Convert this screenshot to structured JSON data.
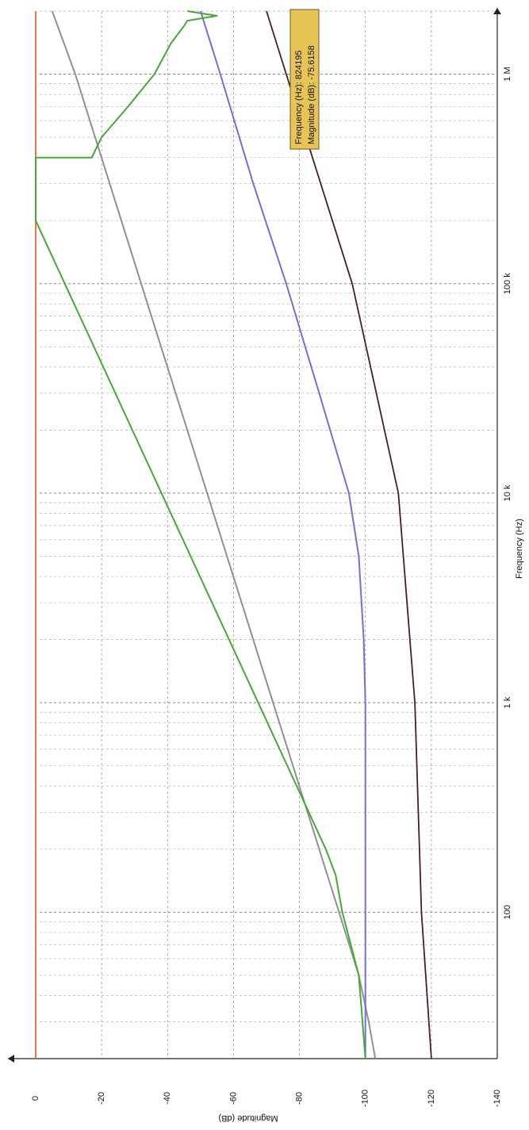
{
  "chart_data": {
    "type": "line",
    "xlabel": "Frequency (Hz)",
    "ylabel": "Magnitude (dB)",
    "xscale": "log",
    "xlim": [
      20,
      2000000
    ],
    "ylim": [
      -140,
      5
    ],
    "y_ticks": [
      0,
      -20,
      -40,
      -60,
      -80,
      -100,
      -120,
      -140
    ],
    "y_tick_labels": [
      "0",
      "-20",
      "-40",
      "-60",
      "-80",
      "-100",
      "-120",
      "-140"
    ],
    "x_ticks": [
      100,
      1000,
      10000,
      100000,
      1000000
    ],
    "x_tick_labels": [
      "100",
      "1 k",
      "10 k",
      "100 k",
      "1 M"
    ],
    "grid": true,
    "orientation": "rotated 90° clockwise (x axis runs top to bottom, y axis left to right)",
    "series": [
      {
        "color": "#f07840",
        "x": [
          20,
          100,
          1000,
          10000,
          100000,
          1000000,
          2000000
        ],
        "y": [
          0,
          0,
          0,
          0,
          0,
          0,
          0
        ]
      },
      {
        "color": "#909090",
        "x": [
          20,
          30,
          50,
          100,
          1000,
          10000,
          100000,
          1000000,
          2000000
        ],
        "y": [
          -103,
          -101,
          -98,
          -92,
          -72,
          -52,
          -32,
          -12,
          -5
        ]
      },
      {
        "color": "#7070d8",
        "x": [
          20,
          100,
          1000,
          2000,
          5000,
          10000,
          30000,
          100000,
          300000,
          1000000,
          2000000
        ],
        "y": [
          -100,
          -100,
          -100,
          -99.5,
          -98,
          -95,
          -86,
          -76,
          -66,
          -56,
          -50
        ]
      },
      {
        "color": "#44aa33",
        "x": [
          20,
          50,
          100,
          150,
          200,
          200000,
          400000,
          400000,
          500000,
          700000,
          1000000,
          1400000,
          1700000,
          1800000,
          1900000,
          2000000
        ],
        "y": [
          -100,
          -98,
          -93,
          -91,
          -88,
          0,
          0,
          -17,
          -20,
          -28,
          -36,
          -41,
          -45,
          -46,
          -55,
          -46
        ]
      },
      {
        "color": "#4a1e1e",
        "x": [
          20,
          100,
          1000,
          10000,
          100000,
          1000000,
          2000000
        ],
        "y": [
          -120,
          -117,
          -115,
          -110,
          -96,
          -76,
          -70
        ]
      }
    ],
    "annotations": [
      {
        "text": "Frequency (Hz): 824195"
      },
      {
        "text": "Magnitude (dB): -75.6158"
      }
    ]
  }
}
